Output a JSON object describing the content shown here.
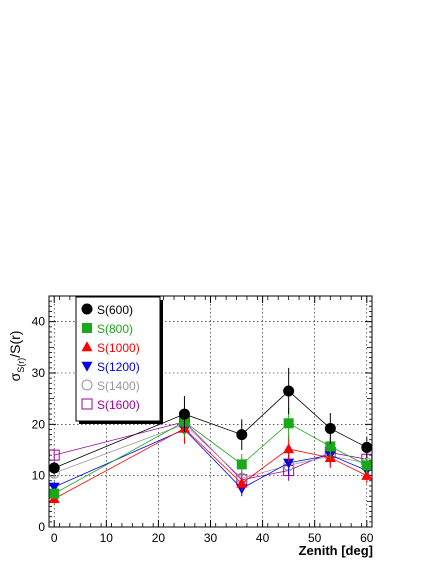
{
  "chart_data": {
    "type": "scatter",
    "title": "",
    "xlabel": "Zenith [deg]",
    "ylabel": "σS(r)/S(r)",
    "ylabel_main": "σ",
    "ylabel_sub": "S(r)",
    "ylabel_rest": "/S(r)",
    "xlim": [
      -1,
      61
    ],
    "ylim": [
      0,
      45
    ],
    "xticks": [
      0,
      10,
      20,
      30,
      40,
      50,
      60
    ],
    "yticks": [
      0,
      10,
      20,
      30,
      40
    ],
    "grid": true,
    "legend_position": "top-left",
    "x": [
      0,
      25,
      36,
      45,
      53,
      60
    ],
    "series": [
      {
        "name": "S(600)",
        "marker": "circle",
        "color": "#000000",
        "values": [
          11.5,
          22.0,
          18.0,
          26.5,
          19.2,
          15.5
        ],
        "errors": [
          1.2,
          3.5,
          3.0,
          4.5,
          3.0,
          2.0
        ]
      },
      {
        "name": "S(800)",
        "marker": "square",
        "color": "#1aa81a",
        "values": [
          6.5,
          20.5,
          12.2,
          20.2,
          15.7,
          12.0
        ],
        "errors": [
          1.0,
          3.0,
          2.0,
          3.0,
          2.5,
          1.5
        ]
      },
      {
        "name": "S(1000)",
        "marker": "triangle-up",
        "color": "#ff0000",
        "values": [
          5.5,
          19.2,
          8.5,
          15.2,
          13.5,
          10.0
        ],
        "errors": [
          1.0,
          3.0,
          1.5,
          2.5,
          2.0,
          1.5
        ]
      },
      {
        "name": "S(1200)",
        "marker": "triangle-down",
        "color": "#0000ee",
        "values": [
          7.8,
          19.0,
          7.5,
          12.5,
          14.0,
          11.0
        ],
        "errors": [
          1.0,
          2.5,
          1.5,
          2.5,
          2.0,
          1.5
        ]
      },
      {
        "name": "S(1400)",
        "marker": "open-circle",
        "color": "#999999",
        "values": [
          10.5,
          20.0,
          9.5,
          12.0,
          13.8,
          12.5
        ],
        "errors": [
          1.0,
          2.5,
          1.5,
          2.0,
          2.0,
          1.5
        ]
      },
      {
        "name": "S(1600)",
        "marker": "open-square",
        "color": "#a000a0",
        "values": [
          14.0,
          20.5,
          9.2,
          11.0,
          14.5,
          13.2
        ],
        "errors": [
          1.0,
          2.5,
          1.5,
          2.0,
          2.0,
          1.5
        ]
      }
    ]
  }
}
